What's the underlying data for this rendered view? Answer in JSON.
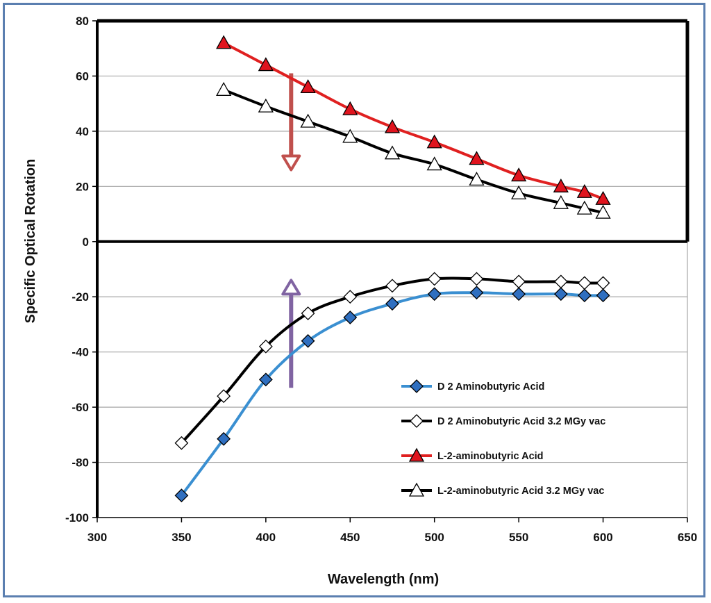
{
  "chart_data": {
    "type": "line",
    "title": "",
    "xlabel": "Wavelength (nm)",
    "ylabel": "Specific Optical Rotation",
    "xlim": [
      300,
      650
    ],
    "ylim": [
      -100,
      80
    ],
    "xticks": [
      300,
      350,
      400,
      450,
      500,
      550,
      600,
      650
    ],
    "yticks": [
      80,
      60,
      40,
      20,
      0,
      -20,
      -40,
      -60,
      -80,
      -100
    ],
    "grid": "horizontal",
    "legend_position": "bottom-right",
    "series": [
      {
        "name": "D 2 Aminobutyric Acid",
        "line_color": "#3a8fd1",
        "marker": "diamond",
        "marker_fill": "#2f6fc0",
        "x": [
          350,
          375,
          400,
          425,
          450,
          475,
          500,
          525,
          550,
          575,
          589,
          600
        ],
        "y": [
          -92,
          -71.5,
          -50,
          -36,
          -27.5,
          -22.5,
          -19,
          -18.5,
          -19,
          -19,
          -19.5,
          -19.5
        ]
      },
      {
        "name": "D 2 Aminobutyric Acid 3.2 MGy vac",
        "line_color": "#000000",
        "marker": "diamond",
        "marker_fill": "#ffffff",
        "x": [
          350,
          375,
          400,
          425,
          450,
          475,
          500,
          525,
          550,
          575,
          589,
          600
        ],
        "y": [
          -73,
          -56,
          -38,
          -26,
          -20,
          -16,
          -13.5,
          -13.5,
          -14.5,
          -14.5,
          -15,
          -15
        ]
      },
      {
        "name": "L-2-aminobutyric Acid",
        "line_color": "#e02020",
        "marker": "triangle",
        "marker_fill": "#e0141e",
        "x": [
          375,
          400,
          425,
          450,
          475,
          500,
          525,
          550,
          575,
          589,
          600
        ],
        "y": [
          72,
          64,
          56,
          48,
          41.5,
          36,
          30,
          24,
          20,
          18,
          15.5
        ]
      },
      {
        "name": "L-2-aminobutyric Acid 3.2 MGy vac",
        "line_color": "#000000",
        "marker": "triangle",
        "marker_fill": "#ffffff",
        "x": [
          375,
          400,
          425,
          450,
          475,
          500,
          525,
          550,
          575,
          589,
          600
        ],
        "y": [
          55,
          49,
          43.5,
          38,
          32,
          28,
          22.5,
          17.5,
          14,
          12,
          10.5
        ]
      }
    ],
    "annotations": [
      {
        "type": "arrow",
        "direction": "down",
        "x": 415,
        "y_from": 61,
        "y_to": 26,
        "color": "#c0504d"
      },
      {
        "type": "arrow",
        "direction": "up",
        "x": 415,
        "y_from": -53,
        "y_to": -14,
        "color": "#8064a2"
      }
    ]
  }
}
